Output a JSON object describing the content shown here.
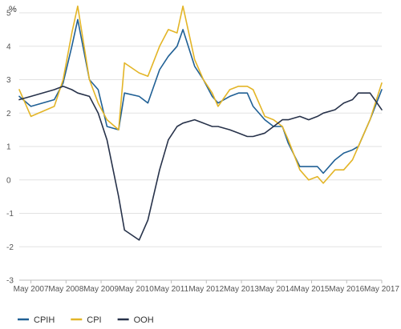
{
  "chart_data": {
    "type": "line",
    "ylabel": "%",
    "ylim": [
      -3,
      5
    ],
    "yticks": [
      5,
      4,
      3,
      2,
      1,
      0,
      -1,
      -2,
      -3
    ],
    "grid": true,
    "legend_position": "bottom-left",
    "x_tick_labels": [
      "May 2007",
      "May 2008",
      "May 2009",
      "May 2010",
      "May 2011",
      "May 2012",
      "May 2013",
      "May 2014",
      "May 2015",
      "May 2016",
      "May 2017"
    ],
    "x_start": "Jan 2007",
    "x_end": "May 2017",
    "x": [
      "Jan 2007",
      "May 2007",
      "Jan 2008",
      "Apr 2008",
      "Jul 2008",
      "Sep 2008",
      "Jan 2009",
      "Apr 2009",
      "Jul 2009",
      "Nov 2009",
      "Jan 2010",
      "Jun 2010",
      "Sep 2010",
      "Jan 2011",
      "Apr 2011",
      "Jul 2011",
      "Sep 2011",
      "Jan 2012",
      "Apr 2012",
      "Jul 2012",
      "Sep 2012",
      "Jan 2013",
      "Apr 2013",
      "Jul 2013",
      "Sep 2013",
      "Jan 2014",
      "Apr 2014",
      "Jul 2014",
      "Sep 2014",
      "Jan 2015",
      "Apr 2015",
      "Jul 2015",
      "Sep 2015",
      "Jan 2016",
      "Apr 2016",
      "Jul 2016",
      "Sep 2016",
      "Jan 2017",
      "May 2017"
    ],
    "series": [
      {
        "name": "CPIH",
        "color": "#206095",
        "values": [
          2.5,
          2.2,
          2.4,
          2.9,
          4.0,
          4.8,
          3.0,
          2.7,
          1.6,
          1.5,
          2.6,
          2.5,
          2.3,
          3.3,
          3.7,
          4.0,
          4.5,
          3.4,
          3.0,
          2.5,
          2.3,
          2.5,
          2.6,
          2.6,
          2.2,
          1.8,
          1.6,
          1.6,
          1.1,
          0.4,
          0.4,
          0.4,
          0.2,
          0.6,
          0.8,
          0.9,
          1.0,
          1.8,
          2.7
        ]
      },
      {
        "name": "CPI",
        "color": "#E3B527",
        "values": [
          2.7,
          1.9,
          2.2,
          3.0,
          4.4,
          5.2,
          3.0,
          2.3,
          1.8,
          1.5,
          3.5,
          3.2,
          3.1,
          4.0,
          4.5,
          4.4,
          5.2,
          3.6,
          3.0,
          2.6,
          2.2,
          2.7,
          2.8,
          2.8,
          2.7,
          1.9,
          1.8,
          1.6,
          1.2,
          0.3,
          0.0,
          0.1,
          -0.1,
          0.3,
          0.3,
          0.6,
          1.0,
          1.8,
          2.9
        ]
      },
      {
        "name": "OOH",
        "color": "#27324A",
        "values": [
          2.4,
          2.5,
          2.7,
          2.8,
          2.7,
          2.6,
          2.5,
          2.0,
          1.2,
          -0.5,
          -1.5,
          -1.8,
          -1.2,
          0.3,
          1.2,
          1.6,
          1.7,
          1.8,
          1.7,
          1.6,
          1.6,
          1.5,
          1.4,
          1.3,
          1.3,
          1.4,
          1.6,
          1.8,
          1.8,
          1.9,
          1.8,
          1.9,
          2.0,
          2.1,
          2.3,
          2.4,
          2.6,
          2.6,
          2.1
        ]
      }
    ]
  }
}
